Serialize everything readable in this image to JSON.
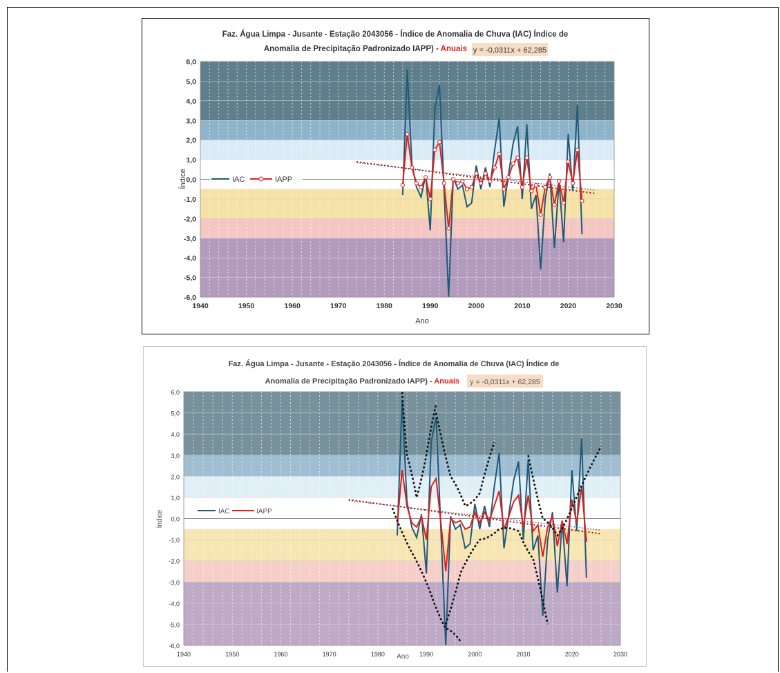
{
  "colors": {
    "iac": "#1f5a7a",
    "iapp": "#e0201b",
    "trend": "#c00000",
    "zone_ext_humid": "#5f7f8c",
    "zone_very_humid": "#8fb3c9",
    "zone_humid": "#dcecf6",
    "zone_normal": "#ffffff",
    "zone_dry": "#f6e2a6",
    "zone_very_dry": "#f4c7c2",
    "zone_ext_dry": "#b39bbd",
    "equation_bg": "#f7dcc6",
    "anuais": "#e0201b"
  },
  "charts": [
    {
      "id": "top",
      "title_line1": "Faz. Água Limpa - Jusante -  Estação 2043056 - Índice de Anomalia de Chuva (IAC) Índice de",
      "title_line2": "Anomalia de Precipitação Padronizado IAPP) -",
      "title_anuais": "Anuais",
      "equation": "y = -0,0311x + 62,285",
      "ylabel": "Índice",
      "xlabel": "Ano",
      "legend": [
        "IAC",
        "IAPP"
      ]
    },
    {
      "id": "bottom",
      "title_line1": "Faz. Água Limpa - Jusante -  Estação 2043056 - Índice de Anomalia de Chuva (IAC) Índice de",
      "title_line2": "Anomalia de Precipitação Padronizado IAPP) -",
      "title_anuais": "Anuais",
      "equation": "y = -0,0311x + 62,285",
      "ylabel": "Índice",
      "xlabel": "Ano",
      "legend": [
        "IAC",
        "IAPP"
      ]
    }
  ],
  "chart_data": [
    {
      "type": "line",
      "title": "Faz. Água Limpa - Jusante -  Estação 2043056 - Índice de Anomalia de Chuva (IAC) Índice de Anomalia de Precipitação Padronizado IAPP) - Anuais",
      "xlabel": "Ano",
      "ylabel": "Índice",
      "xlim": [
        1940,
        2030
      ],
      "ylim": [
        -6,
        6
      ],
      "x_ticks": [
        "1940",
        "1950",
        "1960",
        "1970",
        "1980",
        "1990",
        "2000",
        "2010",
        "2020",
        "2030"
      ],
      "y_ticks": [
        "6,0",
        "5,0",
        "4,0",
        "3,0",
        "2,0",
        "1,0",
        "0,0",
        "-1,0",
        "-2,0",
        "-3,0",
        "-4,0",
        "-5,0",
        "-6,0"
      ],
      "x": [
        1984,
        1985,
        1986,
        1987,
        1988,
        1989,
        1990,
        1991,
        1992,
        1993,
        1994,
        1995,
        1996,
        1997,
        1998,
        1999,
        2000,
        2001,
        2002,
        2003,
        2004,
        2005,
        2006,
        2007,
        2008,
        2009,
        2010,
        2011,
        2012,
        2013,
        2014,
        2015,
        2016,
        2017,
        2018,
        2019,
        2020,
        2021,
        2022,
        2023
      ],
      "series": [
        {
          "name": "IAC",
          "values": [
            -0.8,
            5.6,
            0.8,
            -0.4,
            -0.9,
            0.2,
            -2.6,
            3.6,
            4.8,
            -0.5,
            -6.0,
            0.1,
            -0.5,
            -0.3,
            -1.4,
            -1.2,
            0.7,
            -0.5,
            0.6,
            -0.4,
            1.5,
            3.1,
            -1.4,
            0.2,
            1.8,
            2.7,
            -1.0,
            2.8,
            -1.5,
            -0.8,
            -4.6,
            -1.0,
            0.3,
            -3.5,
            -0.1,
            -3.2,
            2.3,
            -0.6,
            3.8,
            -2.8
          ]
        },
        {
          "name": "IAPP",
          "values": [
            -0.3,
            2.3,
            0.6,
            -0.2,
            -0.4,
            0.1,
            -1.0,
            1.5,
            1.9,
            -0.2,
            -2.5,
            0.0,
            -0.2,
            -0.1,
            -0.5,
            -0.4,
            0.3,
            -0.2,
            0.3,
            -0.1,
            0.6,
            1.3,
            -0.5,
            0.1,
            0.8,
            1.1,
            -0.4,
            1.1,
            -0.6,
            -0.3,
            -1.8,
            -0.4,
            0.1,
            -1.3,
            -0.1,
            -1.2,
            0.9,
            -0.2,
            1.5,
            -1.1
          ]
        }
      ],
      "trend": {
        "equation": "y = -0,0311x + 62,285",
        "slope": -0.0311,
        "intercept": 62.285,
        "x_range": [
          1974,
          2026
        ]
      },
      "zones": [
        {
          "from": 3,
          "to": 6,
          "label": "extremely humid"
        },
        {
          "from": 2,
          "to": 3,
          "label": "very humid"
        },
        {
          "from": 1,
          "to": 2,
          "label": "humid"
        },
        {
          "from": -0.5,
          "to": 1,
          "label": "normal"
        },
        {
          "from": -1,
          "to": -0.5,
          "label": "dry"
        },
        {
          "from": -2,
          "to": -1,
          "label": "dry"
        },
        {
          "from": -3,
          "to": -2,
          "label": "very dry"
        },
        {
          "from": -6,
          "to": -3,
          "label": "extremely dry"
        }
      ],
      "grid": true,
      "legend_position": "left"
    },
    {
      "type": "line",
      "title": "Faz. Água Limpa - Jusante -  Estação 2043056 - Índice de Anomalia de Chuva (IAC) Índice de Anomalia de Precipitação Padronizado IAPP) - Anuais",
      "xlabel": "Ano",
      "ylabel": "Índice",
      "xlim": [
        1940,
        2030
      ],
      "ylim": [
        -6,
        6
      ],
      "note": "same series as top chart with hand-drawn dotted envelope curves",
      "envelopes": [
        {
          "name": "upper-1",
          "x": [
            1985,
            1986,
            1988,
            1990,
            1992
          ],
          "y": [
            6.0,
            3.0,
            1.0,
            3.0,
            5.4
          ]
        },
        {
          "name": "upper-2",
          "x": [
            1992,
            1995,
            1998,
            2001,
            2004
          ],
          "y": [
            5.0,
            2.0,
            0.6,
            1.2,
            3.6
          ]
        },
        {
          "name": "upper-3",
          "x": [
            2011,
            2014,
            2017,
            2020,
            2026
          ],
          "y": [
            3.0,
            0.0,
            -0.8,
            0.5,
            3.4
          ]
        },
        {
          "name": "lower-1",
          "x": [
            1983,
            1987,
            1991,
            1994,
            1997
          ],
          "y": [
            0.5,
            -1.6,
            -3.6,
            -5.2,
            -5.8
          ]
        },
        {
          "name": "lower-2",
          "x": [
            1994,
            1997,
            2001,
            2005,
            2009,
            2012,
            2015
          ],
          "y": [
            -5.0,
            -2.6,
            -1.0,
            -0.5,
            -0.6,
            -1.9,
            -5.0
          ]
        }
      ]
    }
  ]
}
